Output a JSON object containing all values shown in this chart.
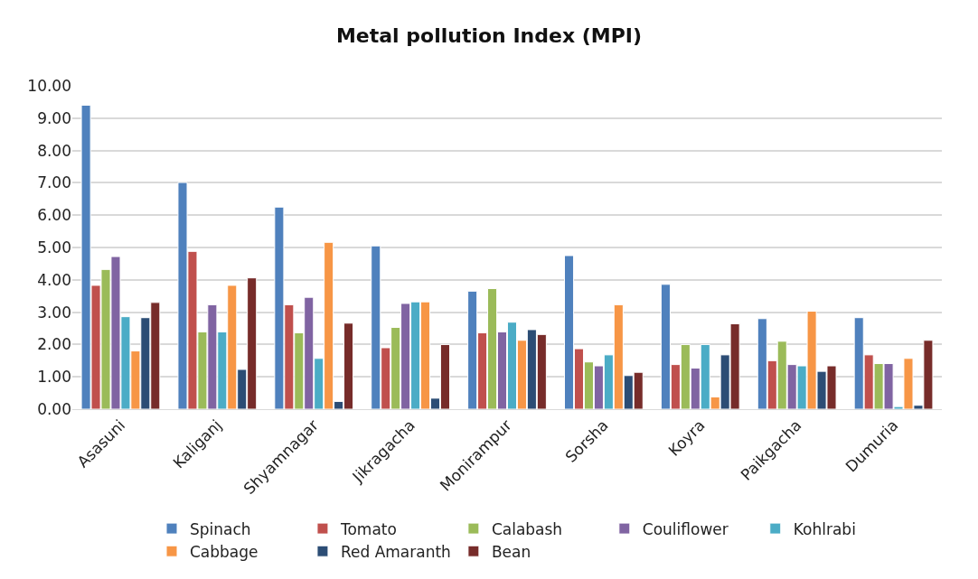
{
  "chart_data": {
    "type": "bar",
    "title": "Metal pollution Index (MPI)",
    "categories": [
      "Asasuni",
      "Kaliganj",
      "Shyamnagar",
      "Jikragacha",
      "Monirampur",
      "Sorsha",
      "Koyra",
      "Paikgacha",
      "Dumuria"
    ],
    "series": [
      {
        "name": "Spinach",
        "color": "#4f81bd",
        "values": [
          9.4,
          7.01,
          6.25,
          5.05,
          3.65,
          4.75,
          3.86,
          2.8,
          2.83
        ]
      },
      {
        "name": "Tomato",
        "color": "#c0504d",
        "values": [
          3.83,
          4.88,
          3.23,
          1.9,
          2.36,
          1.87,
          1.38,
          1.5,
          1.68
        ]
      },
      {
        "name": "Calabash",
        "color": "#9bbb59",
        "values": [
          4.32,
          2.39,
          2.36,
          2.53,
          3.73,
          1.46,
          2.0,
          2.1,
          1.41
        ]
      },
      {
        "name": "Couliflower",
        "color": "#8064a2",
        "values": [
          4.72,
          3.23,
          3.46,
          3.27,
          2.39,
          1.34,
          1.27,
          1.38,
          1.41
        ]
      },
      {
        "name": "Kohlrabi",
        "color": "#4bacc6",
        "values": [
          2.86,
          2.39,
          1.57,
          3.32,
          2.69,
          1.68,
          2.0,
          1.34,
          0.08
        ]
      },
      {
        "name": "Cabbage",
        "color": "#f79646",
        "values": [
          1.8,
          3.83,
          5.16,
          3.32,
          2.13,
          3.23,
          0.38,
          3.03,
          1.57
        ]
      },
      {
        "name": "Red Amaranth",
        "color": "#2c4d75",
        "values": [
          2.83,
          1.23,
          0.24,
          0.34,
          2.46,
          1.04,
          1.68,
          1.17,
          0.12
        ]
      },
      {
        "name": "Bean",
        "color": "#772c2a",
        "values": [
          3.3,
          4.06,
          2.66,
          2.0,
          2.31,
          1.14,
          2.64,
          1.34,
          2.13
        ]
      }
    ],
    "ylim": [
      0,
      10
    ],
    "yticks": [
      {
        "value": 0,
        "label": "0.00"
      },
      {
        "value": 1,
        "label": "1.00"
      },
      {
        "value": 2,
        "label": "2.00"
      },
      {
        "value": 3,
        "label": "3.00"
      },
      {
        "value": 4,
        "label": "4.00"
      },
      {
        "value": 5,
        "label": "5.00"
      },
      {
        "value": 6,
        "label": "6.00"
      },
      {
        "value": 7,
        "label": "7.00"
      },
      {
        "value": 8,
        "label": "8.00"
      },
      {
        "value": 9,
        "label": "9.00"
      },
      {
        "value": 10,
        "label": "10.00"
      }
    ],
    "grid": "y",
    "legend": "bottom"
  }
}
